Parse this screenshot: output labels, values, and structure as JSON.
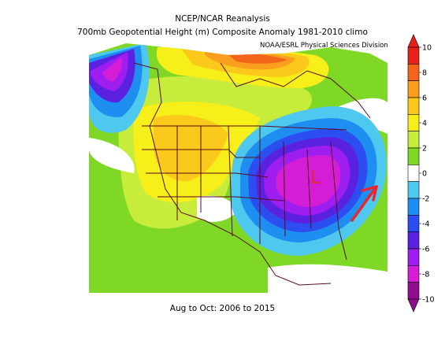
{
  "header": {
    "line1": "NCEP/NCAR Reanalysis",
    "line2": "700mb Geopotential Height (m) Composite Anomaly 1981-2010 climo",
    "credit": "NOAA/ESRL Physical Sciences Division"
  },
  "footer": {
    "period": "Aug to Oct: 2006 to 2015"
  },
  "annotation": {
    "low_label": "L",
    "color": "#e8262e"
  },
  "colorbar": {
    "ticks": [
      "10",
      "8",
      "6",
      "4",
      "2",
      "0",
      "-2",
      "-4",
      "-6",
      "-8",
      "-10"
    ],
    "colors": [
      "#e6201a",
      "#f4651c",
      "#fa9e1e",
      "#fbc81c",
      "#f6ef1a",
      "#c8ec3c",
      "#7fd826",
      "#ffffff",
      "#4ec8ee",
      "#1e8ef0",
      "#2c4ef0",
      "#5a22e0",
      "#9e1ef0",
      "#d41ed6",
      "#8e0e8e"
    ]
  }
}
